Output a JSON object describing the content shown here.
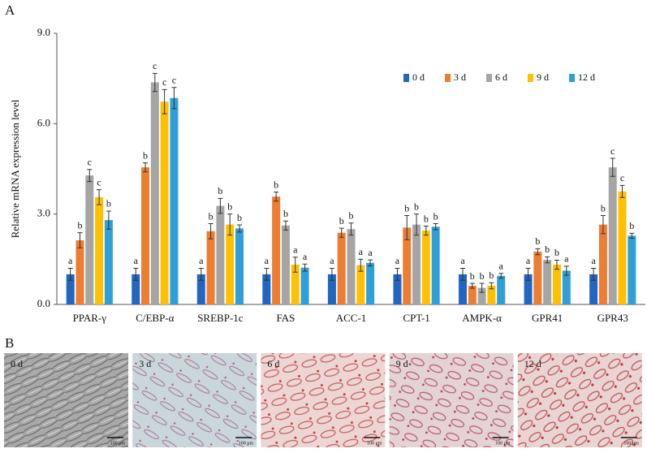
{
  "chart_data": {
    "type": "bar",
    "panel_label": "A",
    "ylabel": "Relative mRNA expression level",
    "categories": [
      "PPAR-γ",
      "C/EBP-α",
      "SREBP-1c",
      "FAS",
      "ACC-1",
      "CPT-1",
      "AMPK-α",
      "GPR41",
      "GPR43"
    ],
    "series": [
      {
        "name": "0 d",
        "color": "#2166c0",
        "values": [
          1.0,
          1.0,
          1.0,
          1.0,
          1.0,
          1.0,
          1.0,
          1.0,
          1.0
        ],
        "errors": [
          0.2,
          0.2,
          0.2,
          0.2,
          0.2,
          0.2,
          0.2,
          0.2,
          0.2
        ],
        "letters": [
          "a",
          "a",
          "a",
          "a",
          "a",
          "a",
          "a",
          "a",
          "a"
        ]
      },
      {
        "name": "3 d",
        "color": "#ed7d31",
        "values": [
          2.13,
          4.55,
          2.43,
          3.58,
          2.38,
          2.55,
          0.62,
          1.75,
          2.65
        ],
        "errors": [
          0.25,
          0.15,
          0.25,
          0.15,
          0.15,
          0.4,
          0.08,
          0.1,
          0.3
        ],
        "letters": [
          "b",
          "b",
          "b",
          "b",
          "b",
          "b",
          "b",
          "b",
          "b"
        ]
      },
      {
        "name": "6 d",
        "color": "#a5a5a5",
        "values": [
          4.28,
          7.37,
          3.27,
          2.62,
          2.5,
          2.65,
          0.55,
          1.48,
          4.55
        ],
        "errors": [
          0.2,
          0.3,
          0.25,
          0.15,
          0.2,
          0.35,
          0.15,
          0.1,
          0.3
        ],
        "letters": [
          "c",
          "c",
          "b",
          "b",
          "b",
          "b",
          "b",
          "b",
          "c"
        ]
      },
      {
        "name": "9 d",
        "color": "#ffc000",
        "values": [
          3.56,
          6.73,
          2.65,
          1.32,
          1.3,
          2.45,
          0.62,
          1.32,
          3.75
        ],
        "errors": [
          0.25,
          0.4,
          0.35,
          0.25,
          0.2,
          0.15,
          0.1,
          0.15,
          0.2
        ],
        "letters": [
          "c",
          "c",
          "b",
          "a",
          "a",
          "b",
          "b",
          "b",
          "c"
        ]
      },
      {
        "name": "12 d",
        "color": "#2e9fd8",
        "values": [
          2.8,
          6.85,
          2.52,
          1.22,
          1.38,
          2.58,
          0.95,
          1.12,
          2.28
        ],
        "errors": [
          0.3,
          0.35,
          0.12,
          0.12,
          0.1,
          0.1,
          0.08,
          0.15,
          0.08
        ],
        "letters": [
          "b",
          "c",
          "b",
          "a",
          "a",
          "b",
          "a",
          "a",
          "b"
        ]
      }
    ],
    "ylim": [
      0,
      9
    ],
    "yticks": [
      {
        "value": 0,
        "label": "0.0"
      },
      {
        "value": 3,
        "label": "3.0"
      },
      {
        "value": 6,
        "label": "6.0"
      },
      {
        "value": 9,
        "label": "9.0"
      }
    ],
    "grid": false,
    "legend": "upper right"
  },
  "panel_b": {
    "label": "B",
    "images": [
      {
        "label": "0 d",
        "scale": "100 μm"
      },
      {
        "label": "3 d",
        "scale": "100 μm"
      },
      {
        "label": "6 d",
        "scale": "100 μm"
      },
      {
        "label": "9 d",
        "scale": "100 μm"
      },
      {
        "label": "12 d",
        "scale": "100 μm"
      }
    ]
  }
}
